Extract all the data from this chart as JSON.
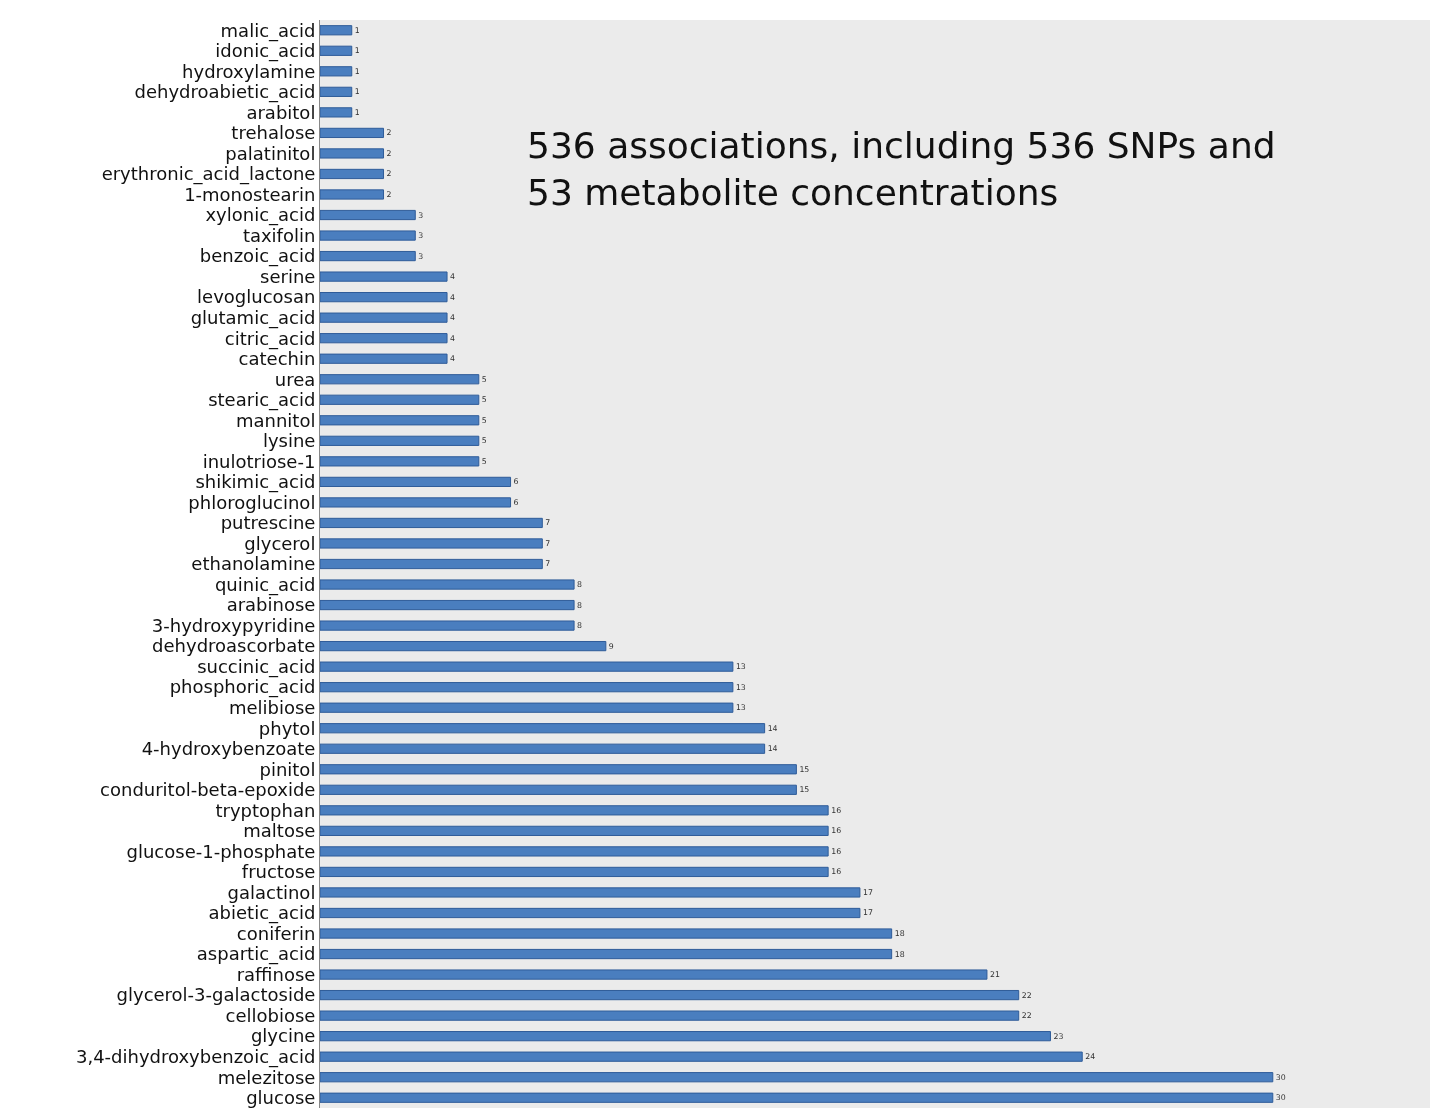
{
  "chart_data": {
    "type": "bar",
    "orientation": "horizontal",
    "data_labels": true,
    "tick_labels": "y",
    "grid": false,
    "color": "#4a7ebf",
    "categories": [
      "malic_acid",
      "idonic_acid",
      "hydroxylamine",
      "dehydroabietic_acid",
      "arabitol",
      "trehalose",
      "palatinitol",
      "erythronic_acid_lactone",
      "1-monostearin",
      "xylonic_acid",
      "taxifolin",
      "benzoic_acid",
      "serine",
      "levoglucosan",
      "glutamic_acid",
      "citric_acid",
      "catechin",
      "urea",
      "stearic_acid",
      "mannitol",
      "lysine",
      "inulotriose-1",
      "shikimic_acid",
      "phloroglucinol",
      "putrescine",
      "glycerol",
      "ethanolamine",
      "quinic_acid",
      "arabinose",
      "3-hydroxypyridine",
      "dehydroascorbate",
      "succinic_acid",
      "phosphoric_acid",
      "melibiose",
      "phytol",
      "4-hydroxybenzoate",
      "pinitol",
      "conduritol-beta-epoxide",
      "tryptophan",
      "maltose",
      "glucose-1-phosphate",
      "fructose",
      "galactinol",
      "abietic_acid",
      "coniferin",
      "aspartic_acid",
      "raffinose",
      "glycerol-3-galactoside",
      "cellobiose",
      "glycine",
      "3,4-dihydroxybenzoic_acid",
      "melezitose",
      "glucose"
    ],
    "values": [
      1,
      1,
      1,
      1,
      1,
      2,
      2,
      2,
      2,
      3,
      3,
      3,
      4,
      4,
      4,
      4,
      4,
      5,
      5,
      5,
      5,
      5,
      6,
      6,
      7,
      7,
      7,
      8,
      8,
      8,
      9,
      13,
      13,
      13,
      14,
      14,
      15,
      15,
      16,
      16,
      16,
      16,
      17,
      17,
      18,
      18,
      21,
      22,
      22,
      23,
      24,
      30,
      30
    ],
    "annotations": [
      "536 associations, including 536 SNPs and 53 metabolite concentrations"
    ]
  }
}
